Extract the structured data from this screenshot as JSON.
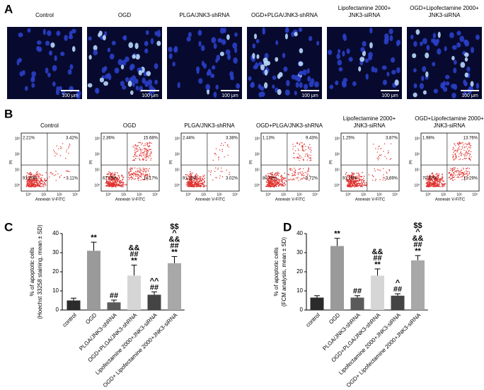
{
  "panel_a": {
    "letter": "A",
    "labels": [
      [
        "Control"
      ],
      [
        "OGD"
      ],
      [
        "PLGA/JNK3-shRNA"
      ],
      [
        "OGD+PLGA/JNK3-shRNA"
      ],
      [
        "Lipofectamine 2000+",
        "JNK3-siRNA"
      ],
      [
        "OGD+Lipofectamine 2000+",
        "JNK3-siRNA"
      ]
    ],
    "scale_bar": "100 μm"
  },
  "panel_b": {
    "letter": "B",
    "labels": [
      [
        "Control"
      ],
      [
        "OGD"
      ],
      [
        "PLGA/JNK3-shRNA"
      ],
      [
        "OGD+PLGA/JNK3-shRNA"
      ],
      [
        "Lipofectamine 2000+",
        "JNK3-siRNA"
      ],
      [
        "OGD+Lipofectamine 2000+",
        "JNK3-siRNA"
      ]
    ],
    "quadrants": [
      [
        "2.21%",
        "3.42%",
        "91.26%",
        "3.11%"
      ],
      [
        "2.36%",
        "15.68%",
        "67.79%",
        "14.17%"
      ],
      [
        "2.44%",
        "3.38%",
        "91.16%",
        "3.02%"
      ],
      [
        "1.13%",
        "9.43%",
        "80.72%",
        "8.72%"
      ],
      [
        "1.25%",
        "3.87%",
        "91.19%",
        "3.69%"
      ],
      [
        "1.98%",
        "13.76%",
        "70.97%",
        "13.29%"
      ]
    ],
    "x_label": "Annexin V-FITC",
    "y_label": "PI",
    "ticks": [
      "10⁰",
      "10¹",
      "10²",
      "10³"
    ]
  },
  "chart_data": [
    {
      "type": "bar",
      "letter": "C",
      "ylabel": [
        "% of apoptotic cells",
        "(Hoechst 33258 staining, mean ± SD)"
      ],
      "categories": [
        "control",
        "OGD",
        "PLGA/JNK3-shRNA",
        "OGD+PLGA/JNK3-shRNA",
        "Lipofectamine 2000+JNK3-siRNA",
        "OGD+ Lipofectamine 2000+JNK3-siRNA"
      ],
      "values": [
        5,
        31,
        4,
        18,
        8,
        24.5
      ],
      "errors": [
        1.2,
        4.5,
        1.2,
        5.5,
        1.5,
        3.5
      ],
      "colors": [
        "#2b2b2b",
        "#9a9a9a",
        "#5a5a5a",
        "#d6d6d6",
        "#444444",
        "#a8a8a8"
      ],
      "annotations": [
        [],
        [
          "**"
        ],
        [
          "##"
        ],
        [
          "&&",
          "##",
          "**"
        ],
        [
          "^^",
          "##"
        ],
        [
          "$$",
          "^",
          "&&",
          "##",
          "**"
        ]
      ],
      "ylim": [
        0,
        40
      ],
      "yticks": [
        0,
        10,
        20,
        30,
        40
      ]
    },
    {
      "type": "bar",
      "letter": "D",
      "ylabel": [
        "% of apoptotic cells",
        "(FCM analysis, mean ± SD)"
      ],
      "categories": [
        "control",
        "OGD",
        "PLGA/JNK3-shRNA",
        "OGD+PLGA/JNK3-shRNA",
        "Lipofectamine 2000+JNK3-siRNA",
        "OGD+ Lipofectamine 2000+JNK3-siRNA"
      ],
      "values": [
        6.5,
        33.5,
        6.5,
        18,
        7.5,
        26
      ],
      "errors": [
        1,
        4,
        1,
        3.5,
        1,
        2.5
      ],
      "colors": [
        "#2b2b2b",
        "#9a9a9a",
        "#5a5a5a",
        "#d6d6d6",
        "#444444",
        "#a8a8a8"
      ],
      "annotations": [
        [],
        [
          "**"
        ],
        [
          "##"
        ],
        [
          "&&",
          "##",
          "**"
        ],
        [
          "^",
          "##"
        ],
        [
          "$$",
          "^",
          "&&",
          "##",
          "**"
        ]
      ],
      "ylim": [
        0,
        40
      ],
      "yticks": [
        0,
        10,
        20,
        30,
        40
      ]
    }
  ]
}
